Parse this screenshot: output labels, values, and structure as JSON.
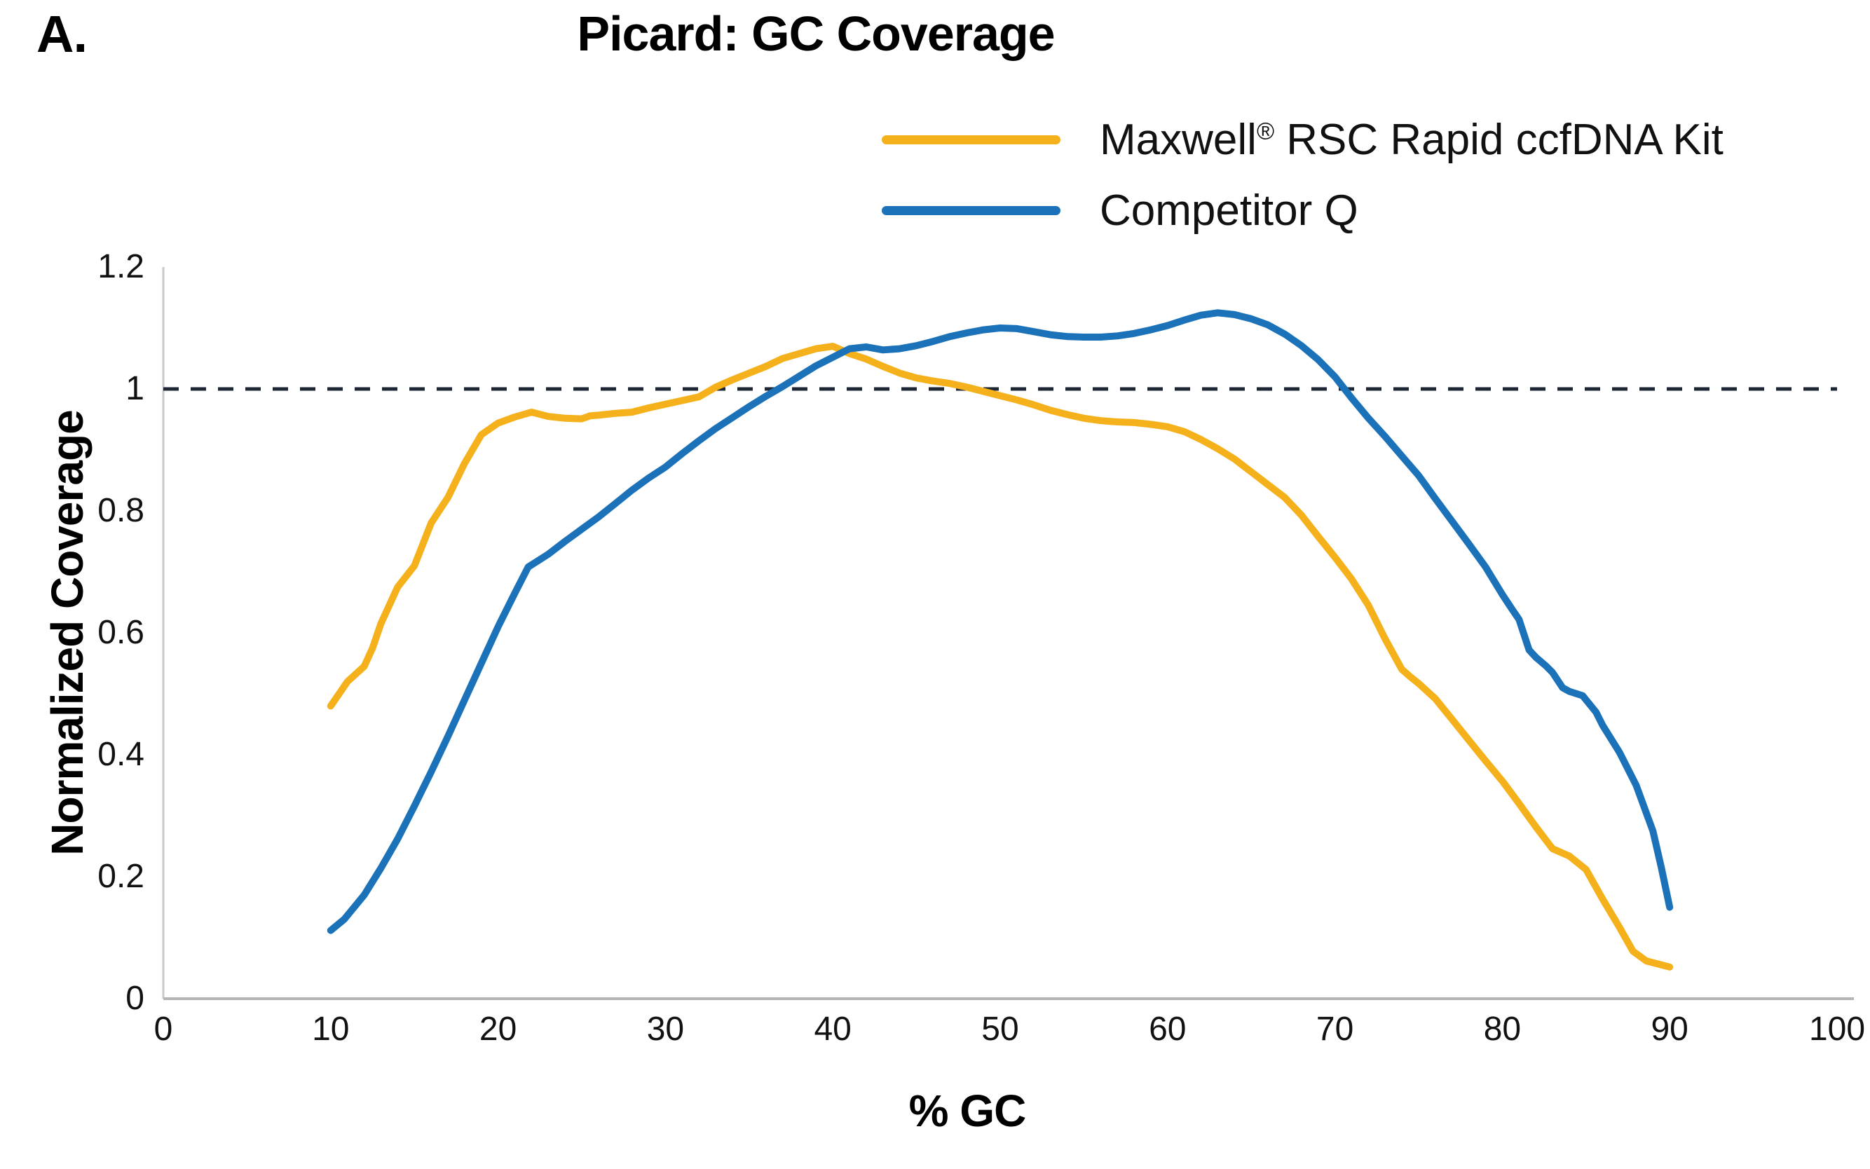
{
  "panel_label": "A.",
  "title": "Picard: GC Coverage",
  "legend": {
    "position": "top-right",
    "items": [
      {
        "id": "maxwell",
        "label_pre": "Maxwell",
        "label_sup": "®",
        "label_post": " RSC Rapid ccfDNA Kit",
        "color": "#F5B11B"
      },
      {
        "id": "competitor",
        "label_pre": "Competitor Q",
        "label_sup": "",
        "label_post": "",
        "color": "#1B72B9"
      }
    ]
  },
  "axes": {
    "x": {
      "label": "% GC",
      "min": 0,
      "max": 100,
      "ticks": [
        {
          "value": 0,
          "label": "0"
        },
        {
          "value": 10,
          "label": "10"
        },
        {
          "value": 20,
          "label": "20"
        },
        {
          "value": 30,
          "label": "30"
        },
        {
          "value": 40,
          "label": "40"
        },
        {
          "value": 50,
          "label": "50"
        },
        {
          "value": 60,
          "label": "60"
        },
        {
          "value": 70,
          "label": "70"
        },
        {
          "value": 80,
          "label": "80"
        },
        {
          "value": 90,
          "label": "90"
        },
        {
          "value": 100,
          "label": "100"
        }
      ]
    },
    "y": {
      "label": "Normalized Coverage",
      "min": 0,
      "max": 1.2,
      "ticks": [
        {
          "value": 0,
          "label": "0"
        },
        {
          "value": 0.2,
          "label": "0.2"
        },
        {
          "value": 0.4,
          "label": "0.4"
        },
        {
          "value": 0.6,
          "label": "0.6"
        },
        {
          "value": 0.8,
          "label": "0.8"
        },
        {
          "value": 1,
          "label": "1"
        },
        {
          "value": 1.2,
          "label": "1.2"
        }
      ]
    }
  },
  "colors": {
    "maxwell_line": "#F5B11B",
    "competitor_line": "#1B72B9",
    "reference_dash": "#1C2733",
    "y_axis_line": "#C9C9C9",
    "x_axis_line": "#B5B5B5",
    "text": "#111111"
  },
  "chart_data": {
    "type": "line",
    "title": "Picard: GC Coverage",
    "xlabel": "% GC",
    "ylabel": "Normalized Coverage",
    "xlim": [
      0,
      100
    ],
    "ylim": [
      0,
      1.2
    ],
    "grid": false,
    "legend_position": "top-right",
    "reference_line_y": 1.0,
    "series": [
      {
        "name": "Maxwell® RSC Rapid ccfDNA Kit",
        "color": "#F5B11B",
        "points": [
          [
            10,
            0.48
          ],
          [
            11,
            0.52
          ],
          [
            12,
            0.545
          ],
          [
            12.5,
            0.575
          ],
          [
            13,
            0.615
          ],
          [
            14,
            0.675
          ],
          [
            15,
            0.71
          ],
          [
            16,
            0.78
          ],
          [
            17,
            0.822
          ],
          [
            18,
            0.878
          ],
          [
            19,
            0.925
          ],
          [
            20,
            0.944
          ],
          [
            21,
            0.954
          ],
          [
            22,
            0.962
          ],
          [
            23,
            0.955
          ],
          [
            24,
            0.952
          ],
          [
            25,
            0.951
          ],
          [
            25.5,
            0.956
          ],
          [
            26,
            0.957
          ],
          [
            27,
            0.96
          ],
          [
            28,
            0.962
          ],
          [
            29,
            0.969
          ],
          [
            30,
            0.975
          ],
          [
            31,
            0.981
          ],
          [
            32,
            0.987
          ],
          [
            33,
            1.003
          ],
          [
            34,
            1.015
          ],
          [
            35,
            1.026
          ],
          [
            36,
            1.037
          ],
          [
            37,
            1.05
          ],
          [
            38,
            1.058
          ],
          [
            39,
            1.066
          ],
          [
            40,
            1.07
          ],
          [
            41,
            1.058
          ],
          [
            42,
            1.049
          ],
          [
            43,
            1.037
          ],
          [
            44,
            1.026
          ],
          [
            45,
            1.018
          ],
          [
            46,
            1.013
          ],
          [
            47,
            1.009
          ],
          [
            48,
            1.003
          ],
          [
            49,
            0.996
          ],
          [
            50,
            0.989
          ],
          [
            51,
            0.982
          ],
          [
            52,
            0.974
          ],
          [
            53,
            0.965
          ],
          [
            54,
            0.958
          ],
          [
            55,
            0.952
          ],
          [
            56,
            0.948
          ],
          [
            57,
            0.946
          ],
          [
            58,
            0.945
          ],
          [
            59,
            0.942
          ],
          [
            60,
            0.938
          ],
          [
            61,
            0.93
          ],
          [
            62,
            0.917
          ],
          [
            63,
            0.902
          ],
          [
            64,
            0.885
          ],
          [
            65,
            0.864
          ],
          [
            66,
            0.843
          ],
          [
            67,
            0.822
          ],
          [
            68,
            0.793
          ],
          [
            69,
            0.758
          ],
          [
            70,
            0.724
          ],
          [
            71,
            0.688
          ],
          [
            72,
            0.645
          ],
          [
            73,
            0.59
          ],
          [
            74,
            0.54
          ],
          [
            74.5,
            0.528
          ],
          [
            75,
            0.517
          ],
          [
            76,
            0.492
          ],
          [
            77,
            0.458
          ],
          [
            78,
            0.424
          ],
          [
            79,
            0.39
          ],
          [
            80,
            0.357
          ],
          [
            81,
            0.32
          ],
          [
            82,
            0.282
          ],
          [
            83,
            0.246
          ],
          [
            84,
            0.234
          ],
          [
            85,
            0.212
          ],
          [
            86,
            0.163
          ],
          [
            87,
            0.117
          ],
          [
            87.8,
            0.078
          ],
          [
            88.6,
            0.062
          ],
          [
            90,
            0.052
          ]
        ]
      },
      {
        "name": "Competitor Q",
        "color": "#1B72B9",
        "points": [
          [
            10,
            0.112
          ],
          [
            10.8,
            0.13
          ],
          [
            12,
            0.17
          ],
          [
            13,
            0.214
          ],
          [
            14,
            0.262
          ],
          [
            15,
            0.316
          ],
          [
            16,
            0.372
          ],
          [
            17,
            0.43
          ],
          [
            18,
            0.49
          ],
          [
            19,
            0.55
          ],
          [
            20,
            0.61
          ],
          [
            21,
            0.665
          ],
          [
            21.8,
            0.708
          ],
          [
            23,
            0.729
          ],
          [
            24,
            0.75
          ],
          [
            25,
            0.77
          ],
          [
            26,
            0.79
          ],
          [
            27,
            0.812
          ],
          [
            28,
            0.834
          ],
          [
            29,
            0.854
          ],
          [
            30,
            0.872
          ],
          [
            31,
            0.894
          ],
          [
            32,
            0.915
          ],
          [
            33,
            0.935
          ],
          [
            34,
            0.953
          ],
          [
            35,
            0.971
          ],
          [
            36,
            0.988
          ],
          [
            37,
            1.004
          ],
          [
            38,
            1.021
          ],
          [
            39,
            1.038
          ],
          [
            40,
            1.052
          ],
          [
            41,
            1.066
          ],
          [
            42,
            1.069
          ],
          [
            43,
            1.064
          ],
          [
            44,
            1.066
          ],
          [
            45,
            1.071
          ],
          [
            46,
            1.078
          ],
          [
            47,
            1.086
          ],
          [
            48,
            1.092
          ],
          [
            49,
            1.097
          ],
          [
            50,
            1.1
          ],
          [
            51,
            1.099
          ],
          [
            52,
            1.094
          ],
          [
            53,
            1.089
          ],
          [
            54,
            1.086
          ],
          [
            55,
            1.085
          ],
          [
            56,
            1.085
          ],
          [
            57,
            1.087
          ],
          [
            58,
            1.091
          ],
          [
            59,
            1.097
          ],
          [
            60,
            1.104
          ],
          [
            61,
            1.113
          ],
          [
            62,
            1.121
          ],
          [
            63,
            1.125
          ],
          [
            64,
            1.122
          ],
          [
            65,
            1.115
          ],
          [
            66,
            1.105
          ],
          [
            67,
            1.09
          ],
          [
            68,
            1.071
          ],
          [
            69,
            1.048
          ],
          [
            70,
            1.02
          ],
          [
            71,
            0.985
          ],
          [
            72,
            0.952
          ],
          [
            73,
            0.922
          ],
          [
            74,
            0.89
          ],
          [
            75,
            0.858
          ],
          [
            76,
            0.82
          ],
          [
            77,
            0.783
          ],
          [
            78,
            0.746
          ],
          [
            79,
            0.708
          ],
          [
            80,
            0.663
          ],
          [
            80.6,
            0.638
          ],
          [
            81,
            0.622
          ],
          [
            81.6,
            0.572
          ],
          [
            82,
            0.56
          ],
          [
            82.6,
            0.546
          ],
          [
            83,
            0.535
          ],
          [
            83.6,
            0.51
          ],
          [
            84,
            0.504
          ],
          [
            84.8,
            0.497
          ],
          [
            85.6,
            0.47
          ],
          [
            86,
            0.448
          ],
          [
            87,
            0.404
          ],
          [
            88,
            0.35
          ],
          [
            89,
            0.275
          ],
          [
            89.5,
            0.215
          ],
          [
            90,
            0.15
          ]
        ]
      }
    ]
  }
}
